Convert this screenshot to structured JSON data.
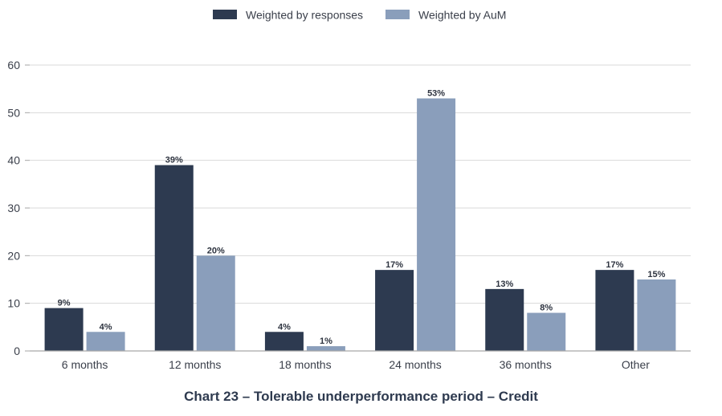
{
  "chart_data": {
    "type": "bar",
    "title": "Chart 23 – Tolerable underperformance period – Credit",
    "categories": [
      "6 months",
      "12 months",
      "18 months",
      "24 months",
      "36 months",
      "Other"
    ],
    "series": [
      {
        "name": "Weighted by responses",
        "color": "#2d3a50",
        "values": [
          9,
          39,
          4,
          17,
          13,
          17
        ],
        "labels": [
          "9%",
          "39%",
          "4%",
          "17%",
          "13%",
          "17%"
        ]
      },
      {
        "name": "Weighted by AuM",
        "color": "#8a9ebb",
        "values": [
          4,
          20,
          1,
          53,
          8,
          15
        ],
        "labels": [
          "4%",
          "20%",
          "1%",
          "53%",
          "8%",
          "15%"
        ]
      }
    ],
    "ylim": [
      0,
      60
    ],
    "yticks": [
      "0",
      "10",
      "20",
      "30",
      "40",
      "50",
      "60"
    ],
    "grid": true,
    "legend_position": "top-center",
    "xlabel": "",
    "ylabel": ""
  }
}
